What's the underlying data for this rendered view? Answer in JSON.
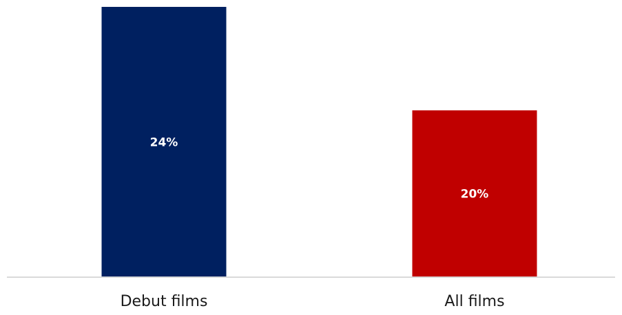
{
  "chart_data": {
    "type": "bar",
    "categories": [
      "Debut films",
      "All films"
    ],
    "values": [
      24,
      20
    ],
    "value_labels": [
      "24%",
      "20%"
    ],
    "colors": [
      "#002060",
      "#c00000"
    ],
    "axis_color": "#d9d9d9",
    "title": "",
    "xlabel": "",
    "ylabel": "",
    "ylim": [
      13.55,
      24
    ],
    "grid": false,
    "legend": "none"
  }
}
